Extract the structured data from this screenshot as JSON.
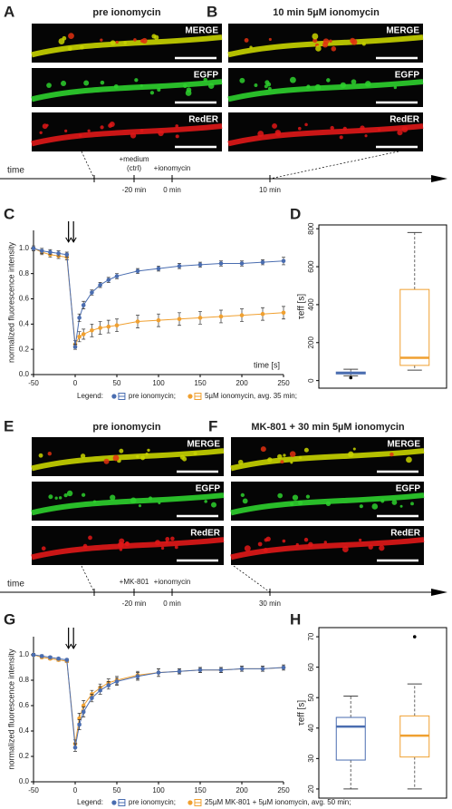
{
  "panels": {
    "A": {
      "panel_label": "A",
      "title": "pre ionomycin",
      "channels": [
        "MERGE",
        "EGFP",
        "RedER"
      ]
    },
    "B": {
      "panel_label": "B",
      "title": "10 min 5µM ionomycin",
      "channels": [
        "MERGE",
        "EGFP",
        "RedER"
      ]
    },
    "timeline1": {
      "label": "time",
      "events": [
        {
          "lines": [
            "+medium",
            "(ctrl)"
          ],
          "time": "-20 min"
        },
        {
          "lines": [
            "+ionomycin"
          ],
          "time": "0 min"
        },
        {
          "lines": [],
          "time": "10 min"
        }
      ]
    },
    "E": {
      "panel_label": "E",
      "title": "pre ionomycin",
      "channels": [
        "MERGE",
        "EGFP",
        "RedER"
      ]
    },
    "F": {
      "panel_label": "F",
      "title": "MK-801 + 30 min 5µM ionomycin",
      "channels": [
        "MERGE",
        "EGFP",
        "RedER"
      ]
    },
    "timeline2": {
      "label": "time",
      "events": [
        {
          "lines": [
            "+MK-801"
          ],
          "time": "-20 min"
        },
        {
          "lines": [
            "+ionomycin"
          ],
          "time": "0 min"
        },
        {
          "lines": [],
          "time": "30 min"
        }
      ]
    }
  },
  "chart_data": [
    {
      "type": "line",
      "panel_label": "C",
      "ylabel": "normalized fluorescence intensity",
      "xlabel": "time [s]",
      "legend_title": "Legend:",
      "x": [
        -50,
        -40,
        -30,
        -20,
        -10,
        0,
        5,
        10,
        20,
        30,
        40,
        50,
        75,
        100,
        125,
        150,
        175,
        200,
        225,
        250
      ],
      "xlim": [
        -50,
        250
      ],
      "xticks": [
        -50,
        0,
        50,
        100,
        150,
        200,
        250
      ],
      "ylim": [
        0,
        1.2
      ],
      "yticks": [
        {
          "value": 0,
          "label": "0.0"
        },
        0.2,
        0.4,
        0.6,
        0.8,
        {
          "value": 1,
          "label": "1.0"
        }
      ],
      "series": [
        {
          "name": "pre ionomycin;",
          "color": "#4a6db0",
          "values": [
            1.0,
            0.98,
            0.97,
            0.96,
            0.95,
            0.22,
            0.45,
            0.55,
            0.65,
            0.71,
            0.75,
            0.78,
            0.82,
            0.84,
            0.86,
            0.87,
            0.88,
            0.88,
            0.89,
            0.9
          ],
          "errors": [
            0.02,
            0.02,
            0.02,
            0.02,
            0.02,
            0.02,
            0.03,
            0.03,
            0.02,
            0.02,
            0.02,
            0.02,
            0.02,
            0.02,
            0.02,
            0.02,
            0.02,
            0.02,
            0.02,
            0.03
          ]
        },
        {
          "name": "5µM ionomycin, avg. 35 min;",
          "color": "#f0a030",
          "values": [
            1.0,
            0.97,
            0.95,
            0.94,
            0.93,
            0.24,
            0.3,
            0.32,
            0.35,
            0.37,
            0.38,
            0.39,
            0.42,
            0.43,
            0.44,
            0.45,
            0.46,
            0.47,
            0.48,
            0.49
          ],
          "errors": [
            0.01,
            0.02,
            0.02,
            0.02,
            0.02,
            0.03,
            0.04,
            0.04,
            0.05,
            0.05,
            0.05,
            0.05,
            0.05,
            0.05,
            0.05,
            0.05,
            0.05,
            0.05,
            0.05,
            0.05
          ]
        }
      ]
    },
    {
      "type": "box",
      "panel_label": "D",
      "ylabel": "τeff [s]",
      "ylim": [
        -40,
        820
      ],
      "yticks": [
        0,
        200,
        400,
        600,
        800
      ],
      "boxes": [
        {
          "color": "#4a6db0",
          "min": 25,
          "q1": 35,
          "median": 40,
          "q3": 45,
          "max": 60,
          "outliers": [
            15
          ]
        },
        {
          "color": "#f0a030",
          "min": 55,
          "q1": 80,
          "median": 120,
          "q3": 480,
          "max": 780,
          "outliers": []
        }
      ]
    },
    {
      "type": "line",
      "panel_label": "G",
      "ylabel": "normalized fluorescence intensity",
      "legend_title": "Legend:",
      "x": [
        -50,
        -40,
        -30,
        -20,
        -10,
        0,
        5,
        10,
        20,
        30,
        40,
        50,
        75,
        100,
        125,
        150,
        175,
        200,
        225,
        250
      ],
      "xlim": [
        -50,
        250
      ],
      "xticks": [
        -50,
        0,
        50,
        100,
        150,
        200,
        250
      ],
      "ylim": [
        0,
        1.2
      ],
      "yticks": [
        {
          "value": 0,
          "label": "0.0"
        },
        0.2,
        0.4,
        0.6,
        0.8,
        {
          "value": 1,
          "label": "1.0"
        }
      ],
      "series": [
        {
          "name": "pre ionomycin;",
          "color": "#4a6db0",
          "values": [
            1.0,
            0.99,
            0.98,
            0.97,
            0.96,
            0.27,
            0.45,
            0.55,
            0.66,
            0.72,
            0.76,
            0.79,
            0.83,
            0.86,
            0.87,
            0.88,
            0.88,
            0.89,
            0.89,
            0.9
          ],
          "errors": [
            0.01,
            0.01,
            0.01,
            0.01,
            0.01,
            0.03,
            0.04,
            0.04,
            0.03,
            0.03,
            0.03,
            0.03,
            0.03,
            0.03,
            0.02,
            0.02,
            0.02,
            0.02,
            0.02,
            0.02
          ]
        },
        {
          "name": "25µM MK-801 + 5µM ionomycin, avg. 50 min;",
          "color": "#f0a030",
          "values": [
            1.0,
            0.98,
            0.97,
            0.96,
            0.95,
            0.3,
            0.5,
            0.6,
            0.69,
            0.74,
            0.78,
            0.8,
            0.84,
            0.86,
            0.87,
            0.88,
            0.88,
            0.89,
            0.89,
            0.9
          ],
          "errors": [
            0.01,
            0.01,
            0.01,
            0.01,
            0.01,
            0.03,
            0.04,
            0.04,
            0.03,
            0.03,
            0.03,
            0.03,
            0.03,
            0.03,
            0.02,
            0.02,
            0.02,
            0.02,
            0.02,
            0.02
          ]
        }
      ]
    },
    {
      "type": "box",
      "panel_label": "H",
      "ylabel": "τeff [s]",
      "ylim": [
        17,
        73
      ],
      "yticks": [
        20,
        30,
        40,
        50,
        60,
        70
      ],
      "boxes": [
        {
          "color": "#4a6db0",
          "min": 20,
          "q1": 29.5,
          "median": 40.5,
          "q3": 43.5,
          "max": 50.5,
          "outliers": []
        },
        {
          "color": "#f0a030",
          "min": 20,
          "q1": 30.5,
          "median": 37.5,
          "q3": 44,
          "max": 54.5,
          "outliers": [
            70
          ]
        }
      ]
    }
  ]
}
